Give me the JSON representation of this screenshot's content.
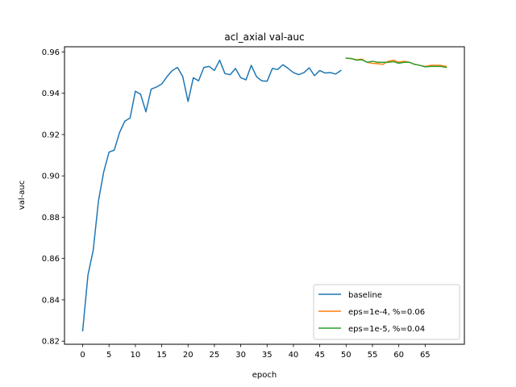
{
  "chart_data": {
    "type": "line",
    "title": "acl_axial val-auc",
    "xlabel": "epoch",
    "ylabel": "val-auc",
    "xlim": [
      -3.45,
      72.45
    ],
    "ylim": [
      0.8185,
      0.9625
    ],
    "x_ticks": [
      0,
      5,
      10,
      15,
      20,
      25,
      30,
      35,
      40,
      45,
      50,
      55,
      60,
      65
    ],
    "y_ticks": [
      0.82,
      0.84,
      0.86,
      0.88,
      0.9,
      0.92,
      0.94,
      0.96
    ],
    "y_tick_labels": [
      "0.82",
      "0.84",
      "0.86",
      "0.88",
      "0.90",
      "0.92",
      "0.94",
      "0.96"
    ],
    "grid": false,
    "legend_position": "lower-right",
    "series": [
      {
        "name": "baseline",
        "color": "#1f77b4",
        "x": [
          0,
          1,
          2,
          3,
          4,
          5,
          6,
          7,
          8,
          9,
          10,
          11,
          12,
          13,
          14,
          15,
          16,
          17,
          18,
          19,
          20,
          21,
          22,
          23,
          24,
          25,
          26,
          27,
          28,
          29,
          30,
          31,
          32,
          33,
          34,
          35,
          36,
          37,
          38,
          39,
          40,
          41,
          42,
          43,
          44,
          45,
          46,
          47,
          48,
          49
        ],
        "y": [
          0.825,
          0.852,
          0.864,
          0.888,
          0.902,
          0.9115,
          0.9125,
          0.921,
          0.9265,
          0.928,
          0.941,
          0.9395,
          0.931,
          0.942,
          0.943,
          0.9445,
          0.948,
          0.951,
          0.9525,
          0.948,
          0.936,
          0.9475,
          0.946,
          0.9525,
          0.953,
          0.951,
          0.956,
          0.9495,
          0.949,
          0.952,
          0.9475,
          0.9465,
          0.9535,
          0.948,
          0.946,
          0.9458,
          0.952,
          0.9515,
          0.9538,
          0.952,
          0.95,
          0.949,
          0.95,
          0.9523,
          0.9485,
          0.951,
          0.9498,
          0.95,
          0.9493,
          0.951
        ]
      },
      {
        "name": "eps=1e-4, %=0.06",
        "color": "#ff7f0e",
        "x": [
          50,
          51,
          52,
          53,
          54,
          55,
          56,
          57,
          58,
          59,
          60,
          61,
          62,
          63,
          64,
          65,
          66,
          67,
          68,
          69
        ],
        "y": [
          0.957,
          0.9568,
          0.9562,
          0.9565,
          0.955,
          0.9545,
          0.9543,
          0.954,
          0.9555,
          0.956,
          0.955,
          0.9555,
          0.955,
          0.954,
          0.9535,
          0.953,
          0.9535,
          0.9535,
          0.9535,
          0.953
        ]
      },
      {
        "name": "eps=1e-5, %=0.04",
        "color": "#2ca02c",
        "x": [
          50,
          51,
          52,
          53,
          54,
          55,
          56,
          57,
          58,
          59,
          60,
          61,
          62,
          63,
          64,
          65,
          66,
          67,
          68,
          69
        ],
        "y": [
          0.957,
          0.9568,
          0.956,
          0.9562,
          0.955,
          0.9555,
          0.955,
          0.955,
          0.955,
          0.9553,
          0.9545,
          0.955,
          0.955,
          0.954,
          0.9535,
          0.9528,
          0.953,
          0.953,
          0.953,
          0.9525
        ]
      }
    ]
  }
}
